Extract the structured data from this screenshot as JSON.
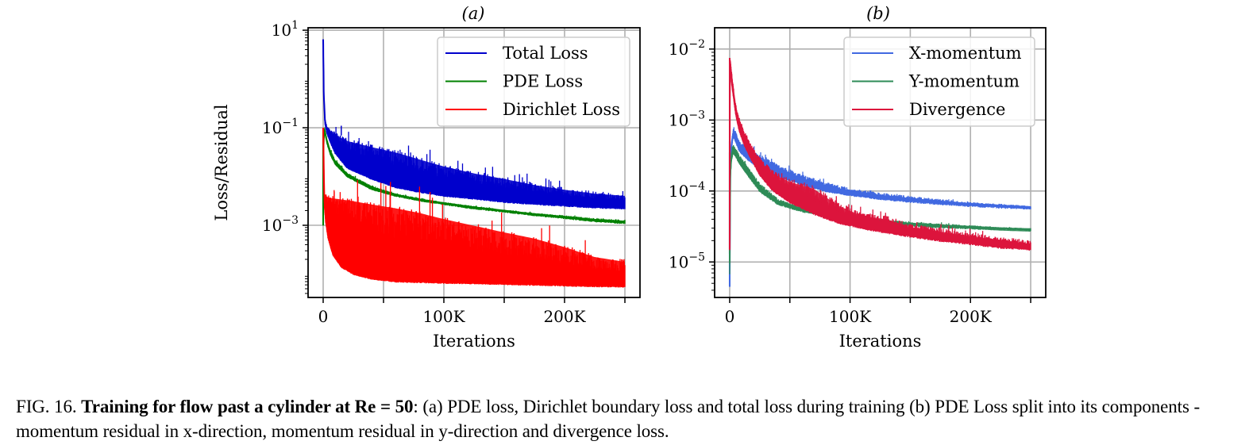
{
  "figure": {
    "label": "FIG. 16.",
    "caption_bold": "Training for flow past a cylinder at Re = 50",
    "caption_rest": ": (a) PDE loss, Dirichlet boundary loss and total loss during training (b) PDE Loss split into its components - momentum residual in x-direction, momentum residual in y-direction and divergence loss."
  },
  "chart_data": [
    {
      "id": "a",
      "type": "line",
      "title": "(a)",
      "xlabel": "Iterations",
      "ylabel": "Loss/Residual",
      "yscale": "log",
      "xlim": [
        -12500,
        262500
      ],
      "ylim_log10": [
        -4.48,
        1.05
      ],
      "xticks": [
        0,
        50000,
        100000,
        150000,
        200000,
        250000
      ],
      "xtick_labels": [
        "0",
        "",
        "100K",
        "",
        "200K",
        ""
      ],
      "yticks_log10": [
        1,
        -1,
        -3
      ],
      "ytick_labels": [
        {
          "base": "10",
          "exp": "1"
        },
        {
          "base": "10",
          "exp": "−1"
        },
        {
          "base": "10",
          "exp": "−3"
        }
      ],
      "grid": true,
      "legend_position": "top-right",
      "series": [
        {
          "name": "Total Loss",
          "color": "#0000cc",
          "x": [
            0,
            500,
            1500,
            3000,
            6000,
            10000,
            20000,
            40000,
            60000,
            80000,
            100000,
            125000,
            150000,
            175000,
            200000,
            225000,
            250000
          ],
          "upper": [
            6.5,
            0.5,
            0.15,
            0.11,
            0.09,
            0.08,
            0.06,
            0.045,
            0.035,
            0.025,
            0.018,
            0.013,
            0.01,
            0.0075,
            0.006,
            0.005,
            0.0045
          ],
          "lower": [
            6.5,
            0.5,
            0.12,
            0.08,
            0.05,
            0.03,
            0.015,
            0.009,
            0.006,
            0.0048,
            0.004,
            0.0035,
            0.003,
            0.0027,
            0.0025,
            0.0023,
            0.0022
          ],
          "spike": {
            "x": 15000,
            "y": 0.11
          }
        },
        {
          "name": "PDE Loss",
          "color": "#008000",
          "x": [
            0,
            200,
            1000,
            3000,
            6000,
            10000,
            20000,
            40000,
            60000,
            80000,
            100000,
            125000,
            150000,
            175000,
            200000,
            225000,
            250000
          ],
          "upper": [
            0.001,
            0.04,
            0.1,
            0.06,
            0.035,
            0.022,
            0.012,
            0.0065,
            0.0045,
            0.0036,
            0.003,
            0.0025,
            0.0021,
            0.0018,
            0.0016,
            0.0014,
            0.0013
          ],
          "lower": [
            0.001,
            0.04,
            0.09,
            0.05,
            0.028,
            0.018,
            0.01,
            0.0055,
            0.004,
            0.0032,
            0.0027,
            0.0022,
            0.0019,
            0.0016,
            0.0014,
            0.0012,
            0.0011
          ]
        },
        {
          "name": "Dirichlet Loss",
          "color": "#ff0000",
          "x": [
            0,
            300,
            1000,
            2000,
            4000,
            8000,
            15000,
            25000,
            40000,
            60000,
            80000,
            100000,
            125000,
            150000,
            175000,
            200000,
            225000,
            250000
          ],
          "upper": [
            0.1,
            0.1,
            0.004,
            0.0045,
            0.0042,
            0.004,
            0.0038,
            0.0035,
            0.003,
            0.0025,
            0.002,
            0.0015,
            0.0011,
            0.0008,
            0.0006,
            0.0004,
            0.00025,
            0.0002
          ],
          "lower": [
            0.1,
            0.01,
            0.0025,
            0.0012,
            0.00055,
            0.00025,
            0.00014,
            0.0001,
            8e-05,
            7e-05,
            6.8e-05,
            6.6e-05,
            6.4e-05,
            6.2e-05,
            6e-05,
            5.8e-05,
            5.6e-05,
            5.5e-05
          ]
        }
      ]
    },
    {
      "id": "b",
      "type": "line",
      "title": "(b)",
      "xlabel": "Iterations",
      "ylabel": "",
      "yscale": "log",
      "xlim": [
        -12500,
        262500
      ],
      "ylim_log10": [
        -5.5,
        -1.7
      ],
      "xticks": [
        0,
        50000,
        100000,
        150000,
        200000,
        250000
      ],
      "xtick_labels": [
        "0",
        "",
        "100K",
        "",
        "200K",
        ""
      ],
      "yticks_log10": [
        -2,
        -3,
        -4,
        -5
      ],
      "ytick_labels": [
        {
          "base": "10",
          "exp": "−2"
        },
        {
          "base": "10",
          "exp": "−3"
        },
        {
          "base": "10",
          "exp": "−4"
        },
        {
          "base": "10",
          "exp": "−5"
        }
      ],
      "grid": true,
      "legend_position": "top-right",
      "series": [
        {
          "name": "X-momentum",
          "color": "#4169e1",
          "x": [
            0,
            500,
            1500,
            3000,
            5000,
            8000,
            15000,
            25000,
            40000,
            60000,
            80000,
            100000,
            125000,
            150000,
            175000,
            200000,
            225000,
            250000
          ],
          "upper": [
            4.5e-06,
            0.0003,
            0.0005,
            0.00075,
            0.0007,
            0.0005,
            0.00042,
            0.00033,
            0.00024,
            0.00017,
            0.000135,
            0.00011,
            9.5e-05,
            8.5e-05,
            7.7e-05,
            7e-05,
            6.6e-05,
            6.2e-05
          ],
          "lower": [
            4.5e-06,
            0.0002,
            0.0004,
            0.0006,
            0.0005,
            0.00037,
            0.00028,
            0.00021,
            0.000165,
            0.000125,
            0.0001,
            8.8e-05,
            7.8e-05,
            7.1e-05,
            6.6e-05,
            6.2e-05,
            5.9e-05,
            5.7e-05
          ]
        },
        {
          "name": "Y-momentum",
          "color": "#2e8b57",
          "x": [
            0,
            500,
            1500,
            3000,
            5000,
            8000,
            15000,
            25000,
            40000,
            60000,
            80000,
            100000,
            125000,
            150000,
            175000,
            200000,
            225000,
            250000
          ],
          "upper": [
            1.3e-05,
            0.0002,
            0.00035,
            0.00045,
            0.0004,
            0.00033,
            0.00022,
            0.00013,
            7.8e-05,
            6e-05,
            5.2e-05,
            4.6e-05,
            4e-05,
            3.7e-05,
            3.5e-05,
            3.3e-05,
            3.1e-05,
            3e-05
          ],
          "lower": [
            7e-06,
            0.00015,
            0.00028,
            0.00035,
            0.00031,
            0.00025,
            0.00017,
            0.0001,
            6.6e-05,
            5.2e-05,
            4.6e-05,
            4e-05,
            3.6e-05,
            3.3e-05,
            3.1e-05,
            3e-05,
            2.9e-05,
            2.8e-05
          ]
        },
        {
          "name": "Divergence",
          "color": "#dc143c",
          "x": [
            0,
            200,
            1000,
            2500,
            5000,
            8000,
            12000,
            18000,
            25000,
            35000,
            50000,
            70000,
            90000,
            110000,
            130000,
            150000,
            175000,
            200000,
            225000,
            250000
          ],
          "upper": [
            1.5e-05,
            0.0075,
            0.006,
            0.0035,
            0.0017,
            0.0011,
            0.0007,
            0.00045,
            0.0003,
            0.0002,
            0.00015,
            0.00012,
            7e-05,
            5e-05,
            4.5e-05,
            3.5e-05,
            3e-05,
            2.6e-05,
            2.3e-05,
            2e-05
          ],
          "lower": [
            1.5e-05,
            0.007,
            0.004,
            0.0025,
            0.0012,
            0.0007,
            0.00045,
            0.00028,
            0.00017,
            0.000105,
            7e-05,
            4.8e-05,
            3.6e-05,
            3e-05,
            2.6e-05,
            2.3e-05,
            2e-05,
            1.8e-05,
            1.6e-05,
            1.5e-05
          ]
        }
      ]
    }
  ]
}
